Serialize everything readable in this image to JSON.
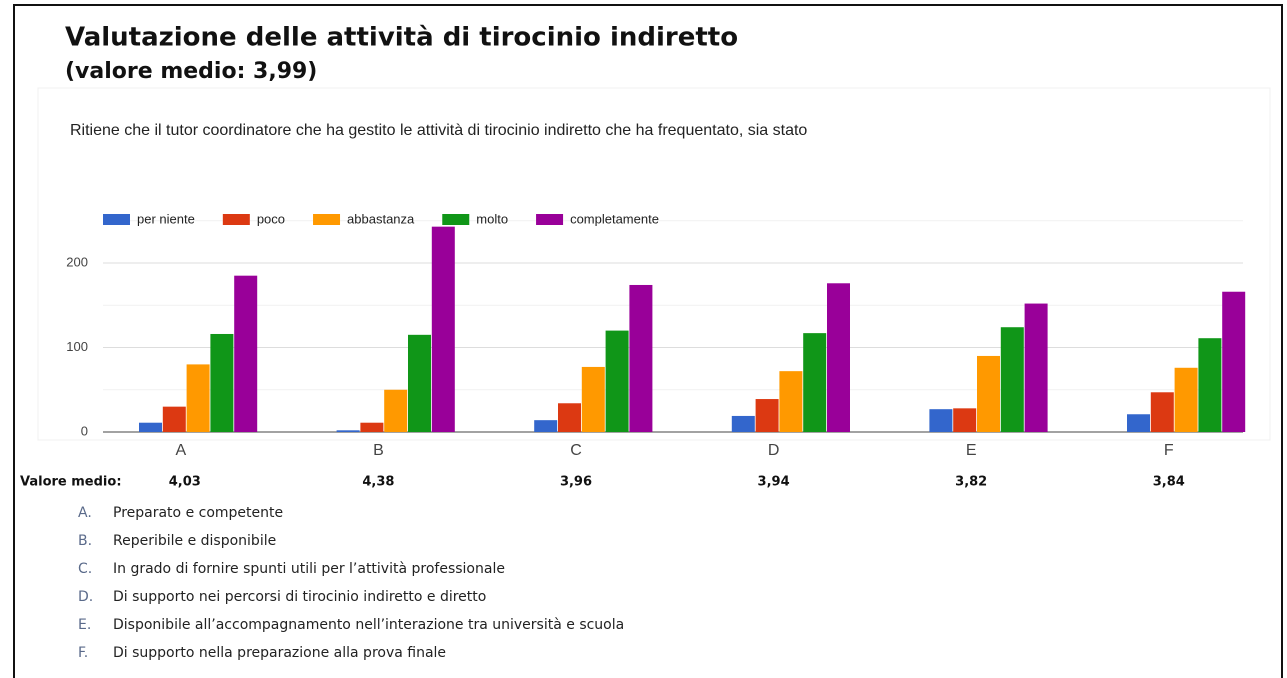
{
  "chart_data": {
    "type": "bar",
    "title": "Valutazione delle attività di tirocinio indiretto",
    "subtitle": "(valore medio: 3,99)",
    "question": "Ritiene che il tutor coordinatore che ha gestito le attività di tirocinio indiretto che ha frequentato, sia stato",
    "categories": [
      "A",
      "B",
      "C",
      "D",
      "E",
      "F"
    ],
    "series": [
      {
        "name": "per niente",
        "color": "#3366cc",
        "values": [
          11,
          2,
          14,
          19,
          27,
          21
        ]
      },
      {
        "name": "poco",
        "color": "#dc3912",
        "values": [
          30,
          11,
          34,
          39,
          28,
          47
        ]
      },
      {
        "name": "abbastanza",
        "color": "#ff9900",
        "values": [
          80,
          50,
          77,
          72,
          90,
          76
        ]
      },
      {
        "name": "molto",
        "color": "#109618",
        "values": [
          116,
          115,
          120,
          117,
          124,
          111
        ]
      },
      {
        "name": "completamente",
        "color": "#990099",
        "values": [
          185,
          243,
          174,
          176,
          152,
          166
        ]
      }
    ],
    "ylim": [
      0,
      250
    ],
    "yticks": [
      0,
      100,
      200
    ],
    "minor_yticks": [
      50,
      150,
      250
    ],
    "grid": true,
    "legend": "top",
    "mean_label": "Valore medio:",
    "means": [
      4.03,
      4.38,
      3.96,
      3.94,
      3.82,
      3.84
    ],
    "mean_labels": [
      "4,03",
      "4,38",
      "3,96",
      "3,94",
      "3,82",
      "3,84"
    ],
    "notes": [
      {
        "marker": "A.",
        "text": "Preparato e competente"
      },
      {
        "marker": "B.",
        "text": "Reperibile e disponibile"
      },
      {
        "marker": "C.",
        "text": "In grado di fornire spunti utili per l’attività professionale"
      },
      {
        "marker": "D.",
        "text": "Di supporto nei percorsi di tirocinio indiretto e diretto"
      },
      {
        "marker": "E.",
        "text": "Disponibile all’accompagnamento nell’interazione tra università e scuola"
      },
      {
        "marker": "F.",
        "text": "Di supporto nella preparazione alla prova finale"
      }
    ]
  }
}
